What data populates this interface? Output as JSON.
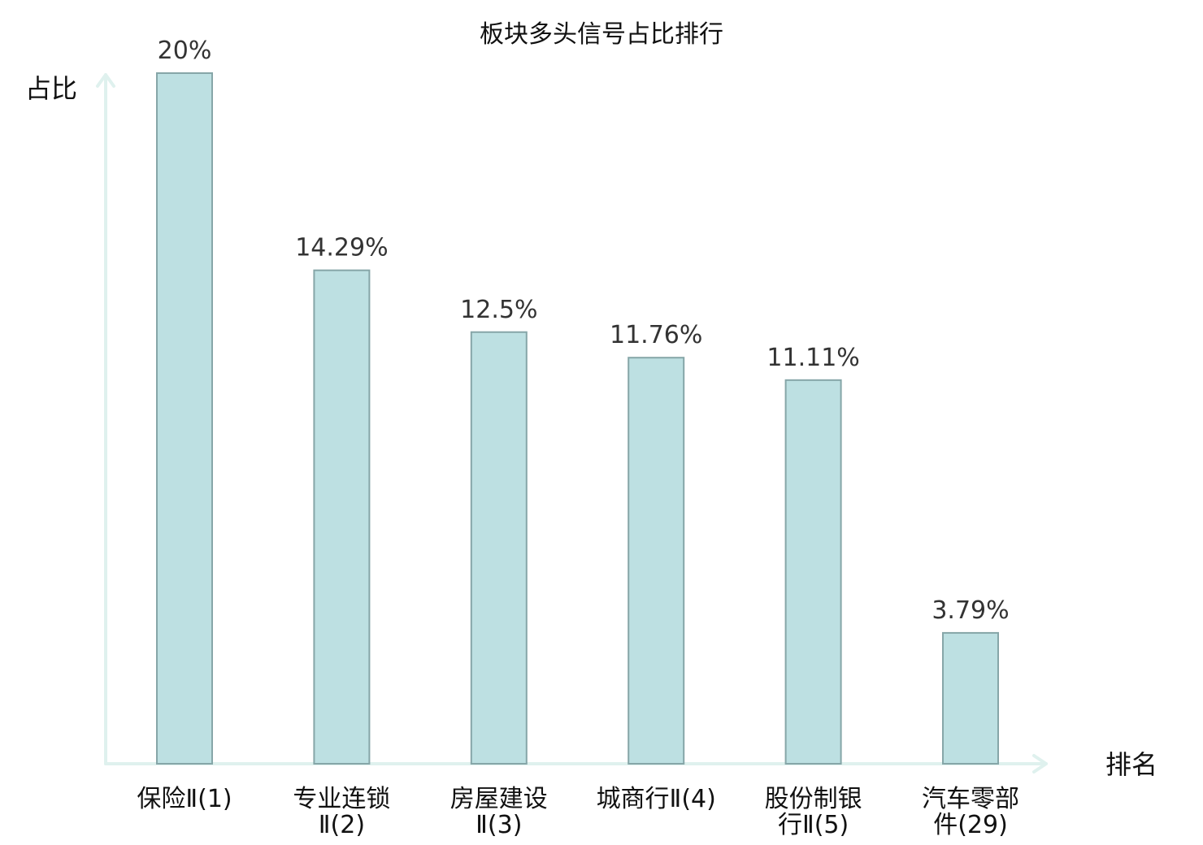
{
  "chart_data": {
    "type": "bar",
    "title": "板块多头信号占比排行",
    "ylabel": "占比",
    "xlabel": "排名",
    "ylim": [
      0,
      20
    ],
    "categories": [
      [
        "保险Ⅱ(1)"
      ],
      [
        "专业连锁",
        "Ⅱ(2)"
      ],
      [
        "房屋建设",
        "Ⅱ(3)"
      ],
      [
        "城商行Ⅱ(4)"
      ],
      [
        "股份制银",
        "行Ⅱ(5)"
      ],
      [
        "汽车零部",
        "件(29)"
      ]
    ],
    "values": [
      20,
      14.29,
      12.5,
      11.76,
      11.11,
      3.79
    ],
    "value_labels": [
      "20%",
      "14.29%",
      "12.5%",
      "11.76%",
      "11.11%",
      "3.79%"
    ],
    "highlight_index": 5,
    "grid": false,
    "colors": {
      "bar_fill": "#bde0e2",
      "bar_stroke": "#86a6a8",
      "axis": "#dff1ee",
      "highlight_text": "#e8201c",
      "text": "#111111",
      "value_text": "#333333"
    }
  }
}
